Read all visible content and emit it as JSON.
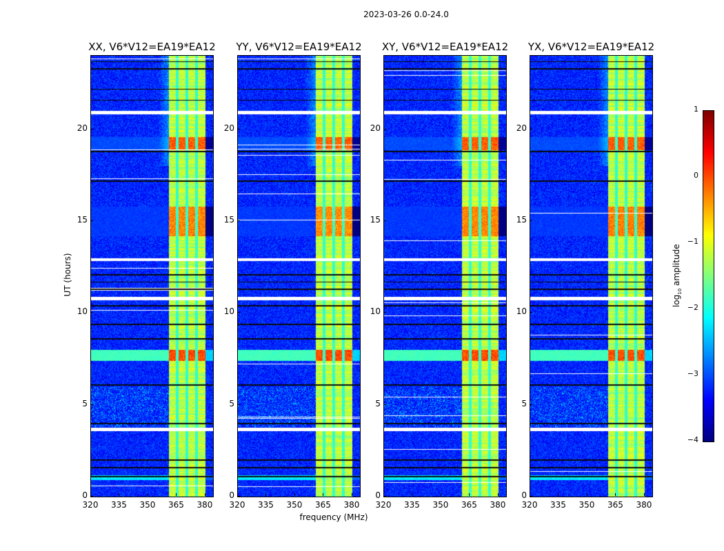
{
  "chart_data": {
    "type": "heatmap",
    "title": "2023-03-26 0.0-24.0",
    "xlabel": "frequency (MHz)",
    "ylabel": "UT (hours)",
    "xlim": [
      320,
      384
    ],
    "ylim": [
      0,
      24
    ],
    "xticks": [
      320,
      335,
      350,
      365,
      380
    ],
    "yticks": [
      0,
      5,
      10,
      15,
      20
    ],
    "panels": [
      {
        "title": "XX, V6*V12=EA19*EA12",
        "strength": 0.9,
        "seed": 11
      },
      {
        "title": "YY, V6*V12=EA19*EA12",
        "strength": 1.1,
        "seed": 23
      },
      {
        "title": "XY, V6*V12=EA19*EA12",
        "strength": 0.95,
        "seed": 37
      },
      {
        "title": "YX, V6*V12=EA19*EA12",
        "strength": 0.85,
        "seed": 51
      }
    ],
    "colorbar": {
      "label_prefix": "log",
      "label_sub": "10",
      "label_suffix": " amplitude",
      "clim": [
        -4,
        1
      ],
      "ticks": [
        1,
        0,
        -1,
        -2,
        -3,
        -4
      ],
      "colormap": "jet"
    },
    "background_level": -3.2,
    "rfi_band_mhz": [
      360.5,
      380
    ],
    "rfi_band_level": -1.2,
    "subband_edges_mhz": [
      365,
      370,
      375
    ],
    "flagged_hours": [
      [
        20.85,
        21.0
      ],
      [
        12.85,
        13.0
      ],
      [
        10.7,
        10.9
      ],
      [
        3.6,
        3.75
      ]
    ],
    "dark_lines_hours": [
      23.7,
      23.3,
      22.2,
      21.6,
      18.8,
      17.2,
      12.1,
      11.7,
      11.3,
      10.4,
      9.4,
      8.6,
      6.1,
      4.0,
      2.0,
      1.6,
      1.1
    ],
    "events": [
      {
        "hours": [
          7.4,
          8.0
        ],
        "band_level": 0.0,
        "bg_level": -1.8
      },
      {
        "hours": [
          18.9,
          19.6
        ],
        "band_level": -0.1,
        "bg_level": -3.0
      },
      {
        "hours": [
          14.2,
          15.8
        ],
        "band_level": -0.3,
        "bg_level": -3.1
      },
      {
        "hours": [
          0.9,
          1.2
        ],
        "band_level": -1.2,
        "bg_level": -2.2
      }
    ]
  }
}
